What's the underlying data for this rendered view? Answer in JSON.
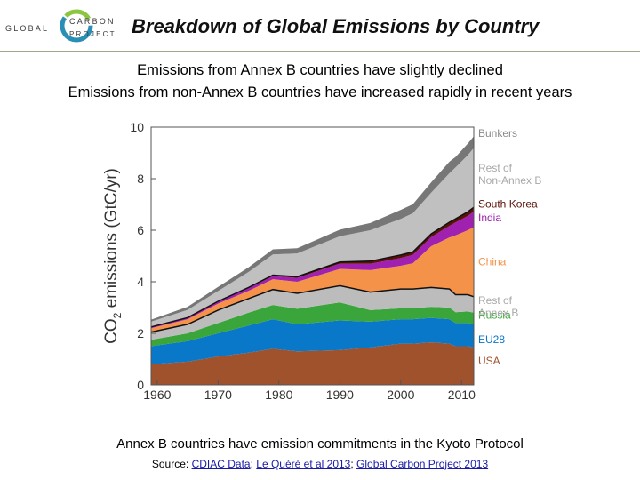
{
  "header": {
    "logo_text": [
      "GLOBAL",
      "CARBON",
      "PROJECT"
    ],
    "title": "Breakdown of Global Emissions by Country"
  },
  "subtitle": {
    "line1": "Emissions from Annex B countries have slightly declined",
    "line2": "Emissions from non-Annex B countries have increased rapidly in recent years"
  },
  "footnote": {
    "text": "Annex B countries have emission commitments in the Kyoto Protocol",
    "source_prefix": "Source: ",
    "sources": [
      "CDIAC Data",
      "Le Quéré et al 2013",
      "Global Carbon Project 2013"
    ],
    "separator": "; "
  },
  "chart_data": {
    "type": "area",
    "stacked": true,
    "ylabel": "CO₂ emissions (GtC/yr)",
    "xlabel": "",
    "xlim": [
      1959,
      2012
    ],
    "ylim": [
      0,
      10
    ],
    "x_ticks": [
      "1960",
      "1970",
      "1980",
      "1990",
      "2000",
      "2010"
    ],
    "y_ticks": [
      "0",
      "2",
      "4",
      "6",
      "8",
      "10"
    ],
    "grid": false,
    "legend": "labels at right edge of each band",
    "x": [
      1959,
      1965,
      1970,
      1975,
      1979,
      1983,
      1990,
      1995,
      2000,
      2002,
      2005,
      2008,
      2009,
      2011,
      2012
    ],
    "series": [
      {
        "name": "USA",
        "color": "#a0522d",
        "values": [
          0.8,
          0.9,
          1.1,
          1.25,
          1.4,
          1.3,
          1.35,
          1.45,
          1.6,
          1.6,
          1.65,
          1.6,
          1.5,
          1.5,
          1.45
        ]
      },
      {
        "name": "EU28",
        "color": "#0a78c8",
        "values": [
          0.7,
          0.8,
          0.9,
          1.05,
          1.15,
          1.05,
          1.15,
          1.0,
          0.95,
          0.95,
          0.95,
          0.95,
          0.9,
          0.9,
          0.9
        ]
      },
      {
        "name": "Russia",
        "color": "#3aa53a",
        "values": [
          0.25,
          0.3,
          0.4,
          0.5,
          0.55,
          0.6,
          0.7,
          0.45,
          0.42,
          0.42,
          0.43,
          0.45,
          0.42,
          0.45,
          0.45
        ]
      },
      {
        "name": "Rest of Annex B",
        "color": "#bcbcbc",
        "values": [
          0.3,
          0.35,
          0.5,
          0.55,
          0.6,
          0.6,
          0.65,
          0.7,
          0.75,
          0.75,
          0.75,
          0.72,
          0.68,
          0.65,
          0.62
        ]
      },
      {
        "name": "China",
        "color": "#f5924a",
        "values": [
          0.15,
          0.2,
          0.25,
          0.3,
          0.4,
          0.45,
          0.65,
          0.85,
          0.9,
          1.0,
          1.6,
          2.0,
          2.3,
          2.5,
          2.7
        ]
      },
      {
        "name": "India",
        "color": "#a020b0",
        "values": [
          0.04,
          0.05,
          0.07,
          0.1,
          0.12,
          0.15,
          0.2,
          0.25,
          0.3,
          0.32,
          0.35,
          0.45,
          0.5,
          0.55,
          0.6
        ]
      },
      {
        "name": "South Korea",
        "color": "#5a1208",
        "values": [
          0.01,
          0.01,
          0.02,
          0.03,
          0.04,
          0.05,
          0.07,
          0.1,
          0.12,
          0.12,
          0.13,
          0.14,
          0.14,
          0.16,
          0.17
        ]
      },
      {
        "name": "Rest of Non-Annex B",
        "color": "#c0c0c0",
        "values": [
          0.2,
          0.3,
          0.4,
          0.6,
          0.8,
          0.9,
          1.0,
          1.2,
          1.4,
          1.5,
          1.6,
          1.9,
          2.0,
          2.2,
          2.3
        ]
      },
      {
        "name": "Bunkers",
        "color": "#777777",
        "values": [
          0.08,
          0.12,
          0.16,
          0.18,
          0.2,
          0.2,
          0.25,
          0.28,
          0.35,
          0.35,
          0.4,
          0.45,
          0.4,
          0.45,
          0.45
        ]
      }
    ]
  }
}
